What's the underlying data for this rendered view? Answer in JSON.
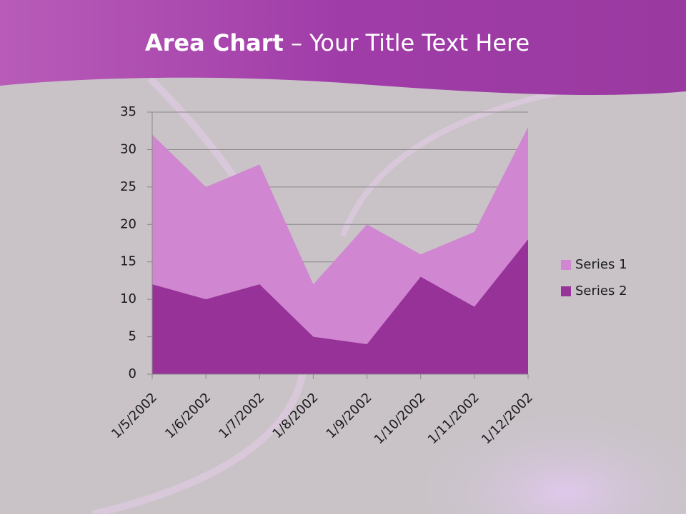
{
  "chart_data": {
    "type": "area",
    "title": [
      "Area Chart",
      "– Your Title Text Here"
    ],
    "categories": [
      "1/5/2002",
      "1/6/2002",
      "1/7/2002",
      "1/8/2002",
      "1/9/2002",
      "1/10/2002",
      "1/11/2002",
      "1/12/2002"
    ],
    "series": [
      {
        "name": "Series 1",
        "color": "#d086d0",
        "values": [
          32,
          25,
          28,
          12,
          20,
          16,
          19,
          33
        ]
      },
      {
        "name": "Series 2",
        "color": "#963298",
        "values": [
          12,
          10,
          12,
          5,
          4,
          13,
          9,
          18
        ]
      }
    ],
    "ylim": [
      0,
      35
    ],
    "yticks": [
      0,
      5,
      10,
      15,
      20,
      25,
      30,
      35
    ],
    "grid": true,
    "legend": "right"
  }
}
